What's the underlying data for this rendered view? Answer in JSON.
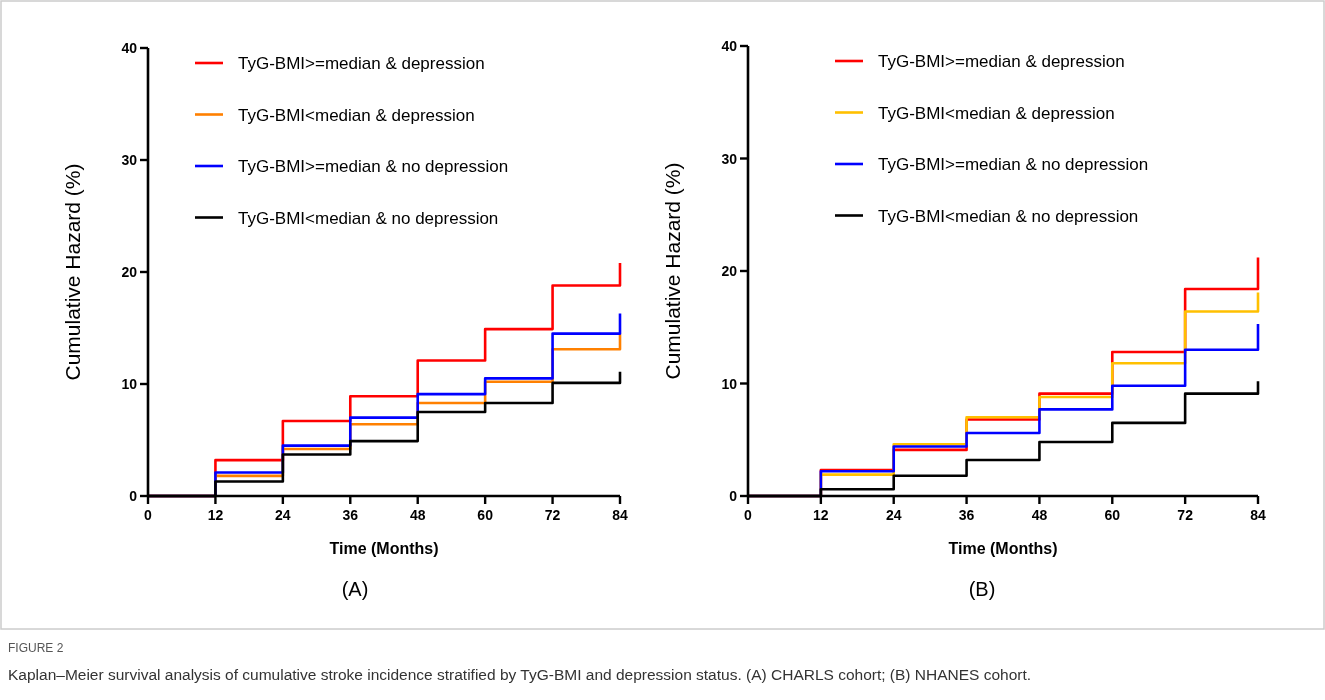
{
  "chart_data": [
    {
      "type": "step",
      "xlabel": "Time (Months)",
      "ylabel": "Cumulative Hazard (%)",
      "x": [
        0,
        12,
        24,
        36,
        48,
        60,
        72,
        84
      ],
      "xlim": [
        0,
        84
      ],
      "xticks": [
        0,
        12,
        24,
        36,
        48,
        60,
        72,
        84
      ],
      "ylim": [
        0,
        40
      ],
      "yticks": [
        0,
        10,
        20,
        30,
        40
      ],
      "legend": "top left",
      "grid": false,
      "series": [
        {
          "name": "TyG-BMI>=median & depression",
          "color": "#ff0000",
          "values": [
            0,
            3.2,
            6.7,
            8.9,
            12.1,
            14.9,
            18.8,
            20.8
          ]
        },
        {
          "name": "TyG-BMI<median & depression",
          "color": "#ff8000",
          "values": [
            0,
            1.8,
            4.2,
            6.4,
            8.3,
            10.2,
            13.1,
            14.5
          ]
        },
        {
          "name": "TyG-BMI>=median & no depression",
          "color": "#0000ff",
          "values": [
            0,
            2.1,
            4.5,
            7.0,
            9.1,
            10.5,
            14.5,
            16.3
          ]
        },
        {
          "name": "TyG-BMI<median & no depression",
          "color": "#000000",
          "values": [
            0,
            1.3,
            3.7,
            4.9,
            7.5,
            8.3,
            10.1,
            11.1
          ]
        }
      ],
      "annotations": [
        "(A)",
        "FIGURE 2",
        "Kaplan–Meier survival analysis of cumulative stroke incidence stratified by TyG-BMI and depression status. (A) CHARLS cohort; (B) NHANES cohort."
      ]
    },
    {
      "type": "step",
      "xlabel": "Time (Months)",
      "ylabel": "Cumulative Hazard (%)",
      "x": [
        0,
        12,
        24,
        36,
        48,
        60,
        72,
        84
      ],
      "xlim": [
        0,
        84
      ],
      "xticks": [
        0,
        12,
        24,
        36,
        48,
        60,
        72,
        84
      ],
      "ylim": [
        0,
        40
      ],
      "yticks": [
        0,
        10,
        20,
        30,
        40
      ],
      "legend": "top left",
      "grid": false,
      "series": [
        {
          "name": "TyG-BMI>=median & depression",
          "color": "#ff0000",
          "values": [
            0,
            2.3,
            4.1,
            6.8,
            9.1,
            12.8,
            18.4,
            21.2
          ]
        },
        {
          "name": "TyG-BMI<median & depression",
          "color": "#ffc000",
          "values": [
            0,
            1.9,
            4.6,
            7.0,
            8.8,
            11.8,
            16.4,
            18.1
          ]
        },
        {
          "name": "TyG-BMI>=median & no depression",
          "color": "#0000ff",
          "values": [
            0,
            2.2,
            4.4,
            5.6,
            7.7,
            9.8,
            13.0,
            15.3
          ]
        },
        {
          "name": "TyG-BMI<median & no depression",
          "color": "#000000",
          "values": [
            0,
            0.6,
            1.8,
            3.2,
            4.8,
            6.5,
            9.1,
            10.2
          ]
        }
      ],
      "annotations": [
        "(B)"
      ]
    }
  ]
}
